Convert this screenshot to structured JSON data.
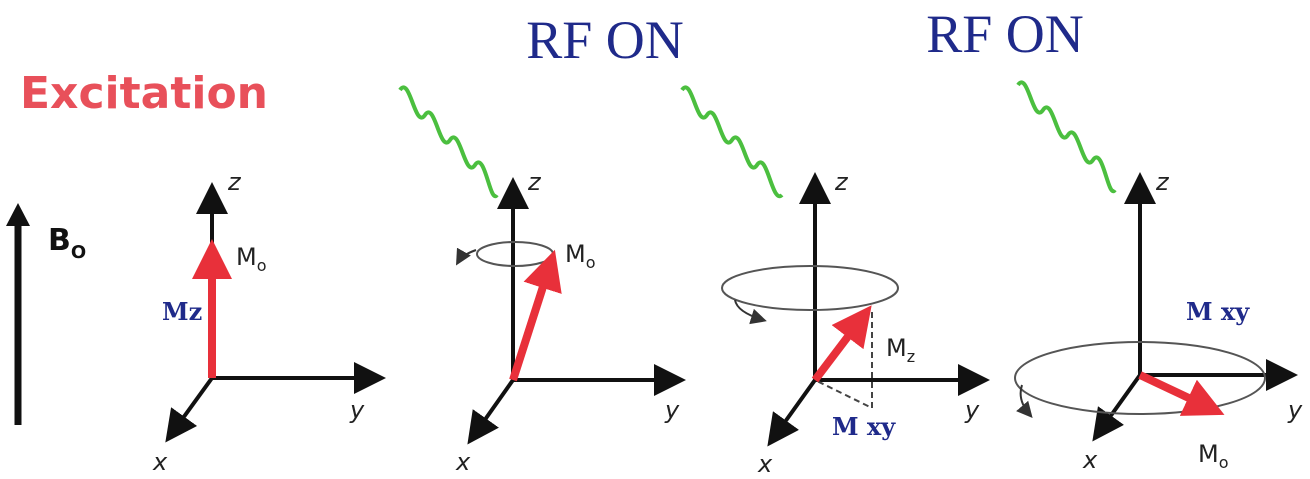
{
  "title": "Excitation",
  "rf_labels": [
    "RF ON",
    "RF ON"
  ],
  "field": {
    "label": "B",
    "subscript": "O"
  },
  "panels": [
    {
      "axes": {
        "z": "z",
        "y": "y",
        "x": "x"
      },
      "vector": {
        "label": "M",
        "subscript": "o"
      },
      "component": "Mz"
    },
    {
      "axes": {
        "z": "z",
        "y": "y",
        "x": "x"
      },
      "vector": {
        "label": "M",
        "subscript": "o"
      }
    },
    {
      "axes": {
        "z": "z",
        "y": "y",
        "x": "x"
      },
      "vector": {
        "label": "M",
        "subscript": "z"
      },
      "component": "M xy"
    },
    {
      "axes": {
        "z": "z",
        "y": "y",
        "x": "x"
      },
      "vector": {
        "label": "M",
        "subscript": "o"
      },
      "component": "M xy"
    }
  ]
}
